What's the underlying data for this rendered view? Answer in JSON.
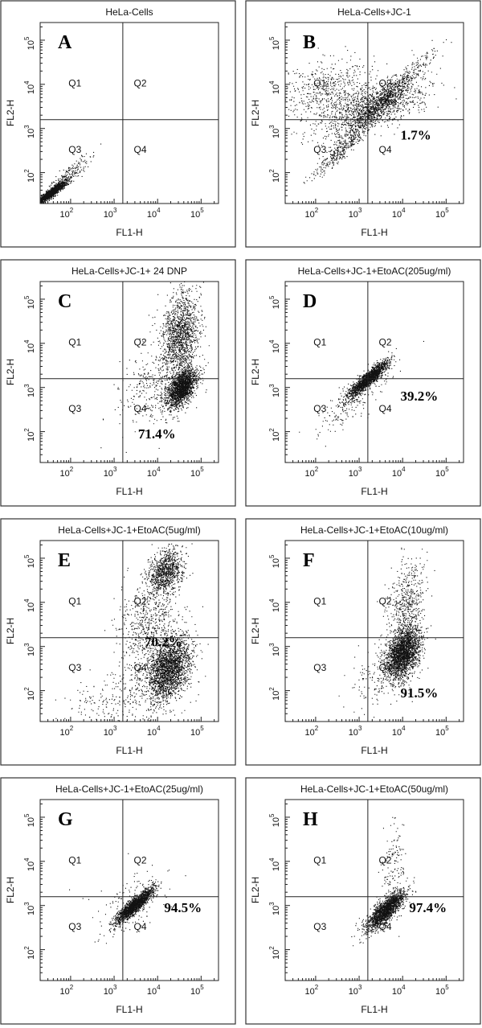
{
  "chart_data": [
    {
      "type": "scatter",
      "panel": "A",
      "title": "HeLa-Cells",
      "xlabel": "FL1-H",
      "ylabel": "FL2-H",
      "x_scale": "log",
      "y_scale": "log",
      "quadrant_labels": [
        "Q1",
        "Q2",
        "Q3",
        "Q4"
      ],
      "annotation": "",
      "populations": [
        {
          "log_x": 1.55,
          "log_y": 1.55,
          "sd_x": 0.16,
          "sd_y": 0.12,
          "rho": 0.92,
          "n": 1500
        },
        {
          "log_x": 1.9,
          "log_y": 1.9,
          "sd_x": 0.25,
          "sd_y": 0.22,
          "rho": 0.9,
          "n": 250
        }
      ]
    },
    {
      "type": "scatter",
      "panel": "B",
      "title": "HeLa-Cells+JC-1",
      "xlabel": "FL1-H",
      "ylabel": "FL2-H",
      "x_scale": "log",
      "y_scale": "log",
      "quadrant_labels": [
        "Q1",
        "Q2",
        "Q3",
        "Q4"
      ],
      "annotation": "1.7%",
      "populations": [
        {
          "log_x": 3.3,
          "log_y": 3.5,
          "sd_x": 0.6,
          "sd_y": 0.3,
          "rho": 0.55,
          "n": 1200
        },
        {
          "log_x": 3.5,
          "log_y": 3.6,
          "sd_x": 0.55,
          "sd_y": 0.52,
          "rho": 0.97,
          "n": 900
        },
        {
          "log_x": 2.2,
          "log_y": 3.9,
          "sd_x": 0.55,
          "sd_y": 0.35,
          "rho": 0.3,
          "n": 500
        },
        {
          "log_x": 2.6,
          "log_y": 2.5,
          "sd_x": 0.35,
          "sd_y": 0.32,
          "rho": 0.95,
          "n": 300
        }
      ]
    },
    {
      "type": "scatter",
      "panel": "C",
      "title": "HeLa-Cells+JC-1+ 24 DNP",
      "xlabel": "FL1-H",
      "ylabel": "FL2-H",
      "x_scale": "log",
      "y_scale": "log",
      "quadrant_labels": [
        "Q1",
        "Q2",
        "Q3",
        "Q4"
      ],
      "annotation": "71.4%",
      "populations": [
        {
          "log_x": 4.55,
          "log_y": 3.0,
          "sd_x": 0.17,
          "sd_y": 0.22,
          "rho": 0.5,
          "n": 1800
        },
        {
          "log_x": 4.5,
          "log_y": 4.2,
          "sd_x": 0.22,
          "sd_y": 0.5,
          "rho": 0.2,
          "n": 1400
        },
        {
          "log_x": 3.9,
          "log_y": 3.0,
          "sd_x": 0.4,
          "sd_y": 0.45,
          "rho": 0.3,
          "n": 350
        }
      ]
    },
    {
      "type": "scatter",
      "panel": "D",
      "title": "HeLa-Cells+JC-1+EtoAC(205ug/ml)",
      "xlabel": "FL1-H",
      "ylabel": "FL2-H",
      "x_scale": "log",
      "y_scale": "log",
      "quadrant_labels": [
        "Q1",
        "Q2",
        "Q3",
        "Q4"
      ],
      "annotation": "39.2%",
      "populations": [
        {
          "log_x": 3.2,
          "log_y": 3.2,
          "sd_x": 0.22,
          "sd_y": 0.2,
          "rho": 0.9,
          "n": 1600
        },
        {
          "log_x": 2.9,
          "log_y": 2.8,
          "sd_x": 0.45,
          "sd_y": 0.4,
          "rho": 0.85,
          "n": 250
        }
      ]
    },
    {
      "type": "scatter",
      "panel": "E",
      "title": "HeLa-Cells+JC-1+EtoAC(5ug/ml)",
      "xlabel": "FL1-H",
      "ylabel": "FL2-H",
      "x_scale": "log",
      "y_scale": "log",
      "quadrant_labels": [
        "Q1",
        "Q2",
        "Q3",
        "Q4"
      ],
      "annotation": "70.2%",
      "populations": [
        {
          "log_x": 4.25,
          "log_y": 2.5,
          "sd_x": 0.25,
          "sd_y": 0.35,
          "rho": 0.3,
          "n": 2200
        },
        {
          "log_x": 4.2,
          "log_y": 4.7,
          "sd_x": 0.2,
          "sd_y": 0.25,
          "rho": 0.3,
          "n": 900
        },
        {
          "log_x": 3.8,
          "log_y": 3.5,
          "sd_x": 0.35,
          "sd_y": 0.6,
          "rho": 0.2,
          "n": 700
        },
        {
          "log_x": 3.2,
          "log_y": 1.8,
          "sd_x": 0.7,
          "sd_y": 0.4,
          "rho": 0.4,
          "n": 300
        }
      ]
    },
    {
      "type": "scatter",
      "panel": "F",
      "title": "HeLa-Cells+JC-1+EtoAC(10ug/ml)",
      "xlabel": "FL1-H",
      "ylabel": "FL2-H",
      "x_scale": "log",
      "y_scale": "log",
      "quadrant_labels": [
        "Q1",
        "Q2",
        "Q3",
        "Q4"
      ],
      "annotation": "91.5%",
      "populations": [
        {
          "log_x": 4.0,
          "log_y": 2.85,
          "sd_x": 0.2,
          "sd_y": 0.3,
          "rho": 0.4,
          "n": 2200
        },
        {
          "log_x": 4.1,
          "log_y": 4.0,
          "sd_x": 0.2,
          "sd_y": 0.45,
          "rho": 0.2,
          "n": 500
        },
        {
          "log_x": 3.5,
          "log_y": 2.4,
          "sd_x": 0.35,
          "sd_y": 0.35,
          "rho": 0.3,
          "n": 150
        }
      ]
    },
    {
      "type": "scatter",
      "panel": "G",
      "title": "HeLa-Cells+JC-1+EtoAC(25ug/ml)",
      "xlabel": "FL1-H",
      "ylabel": "FL2-H",
      "x_scale": "log",
      "y_scale": "log",
      "quadrant_labels": [
        "Q1",
        "Q2",
        "Q3",
        "Q4"
      ],
      "annotation": "94.5%",
      "populations": [
        {
          "log_x": 3.45,
          "log_y": 3.0,
          "sd_x": 0.22,
          "sd_y": 0.2,
          "rho": 0.9,
          "n": 1700
        },
        {
          "log_x": 3.4,
          "log_y": 3.1,
          "sd_x": 0.45,
          "sd_y": 0.45,
          "rho": 0.6,
          "n": 150
        }
      ]
    },
    {
      "type": "scatter",
      "panel": "H",
      "title": "HeLa-Cells+JC-1+EtoAC(50ug/ml)",
      "xlabel": "FL1-H",
      "ylabel": "FL2-H",
      "x_scale": "log",
      "y_scale": "log",
      "quadrant_labels": [
        "Q1",
        "Q2",
        "Q3",
        "Q4"
      ],
      "annotation": "97.4%",
      "populations": [
        {
          "log_x": 3.6,
          "log_y": 2.9,
          "sd_x": 0.22,
          "sd_y": 0.22,
          "rho": 0.8,
          "n": 1800
        },
        {
          "log_x": 3.8,
          "log_y": 3.8,
          "sd_x": 0.15,
          "sd_y": 0.55,
          "rho": 0.1,
          "n": 150
        }
      ]
    }
  ]
}
